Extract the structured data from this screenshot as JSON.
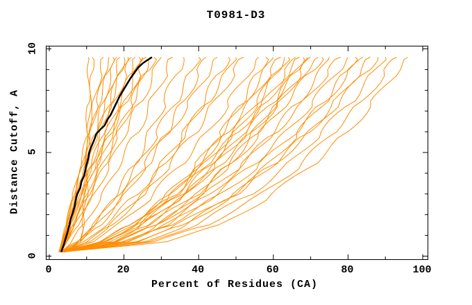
{
  "chart_data": {
    "type": "line",
    "title": "T0981-D3",
    "xlabel": "Percent of Residues (CA)",
    "ylabel": "Distance Cutoff, A",
    "xlim": [
      0,
      100
    ],
    "ylim": [
      0,
      10
    ],
    "grid": false,
    "legend": "none",
    "x_ticks": {
      "major": [
        0,
        20,
        40,
        60,
        80,
        100
      ],
      "labels": [
        "0",
        "20",
        "40",
        "60",
        "80",
        "100"
      ],
      "minor": [
        10,
        30,
        50,
        70,
        90
      ]
    },
    "y_ticks": {
      "major": [
        0,
        5,
        10
      ],
      "labels": [
        "0",
        "5",
        "10"
      ],
      "minor": [
        1,
        2,
        3,
        4,
        6,
        7,
        8,
        9
      ]
    },
    "colors": {
      "predictions": "#ff8c00",
      "highlighted_model": "#000000",
      "axis": "#000000",
      "background": "#ffffff"
    },
    "y_anchors": [
      0.2,
      0.7,
      1.5,
      3,
      4.5,
      6,
      7.5,
      9,
      9.6
    ],
    "series": [
      {
        "name": "p01",
        "x": [
          3.5,
          31,
          46,
          60,
          71,
          80,
          87,
          93.5,
          96
        ]
      },
      {
        "name": "p02",
        "x": [
          3,
          29,
          42,
          57,
          68,
          76,
          84,
          90.5,
          93
        ]
      },
      {
        "name": "p03",
        "x": [
          4,
          27,
          39,
          54,
          64.5,
          73,
          81,
          87.5,
          90
        ]
      },
      {
        "name": "p04",
        "x": [
          3,
          22.5,
          34.5,
          49.5,
          60.5,
          70,
          78,
          85,
          88
        ]
      },
      {
        "name": "p05",
        "x": [
          3.5,
          24,
          36,
          50,
          60.5,
          69.5,
          77,
          83.5,
          86
        ]
      },
      {
        "name": "p06",
        "x": [
          3,
          20.5,
          32,
          46,
          57,
          66,
          74,
          81,
          84
        ]
      },
      {
        "name": "p07",
        "x": [
          4,
          25.5,
          36.5,
          50,
          59,
          67,
          74,
          80,
          82
        ]
      },
      {
        "name": "p08",
        "x": [
          3,
          20.5,
          31.5,
          45,
          55,
          63.5,
          71,
          77.5,
          80
        ]
      },
      {
        "name": "p09",
        "x": [
          3.5,
          18.5,
          28.5,
          42,
          52,
          60.5,
          68.5,
          75,
          78
        ]
      },
      {
        "name": "p10",
        "x": [
          3,
          20.5,
          31,
          43,
          52.5,
          60,
          67,
          73,
          75
        ]
      },
      {
        "name": "p11",
        "x": [
          4,
          17.5,
          27,
          39.5,
          49,
          57,
          64,
          70.5,
          73
        ]
      },
      {
        "name": "p12",
        "x": [
          3,
          15,
          24,
          36.5,
          46,
          54.5,
          62,
          69,
          72
        ]
      },
      {
        "name": "p13",
        "x": [
          3.5,
          19,
          28,
          40,
          48.5,
          55.5,
          62,
          68,
          70
        ]
      },
      {
        "name": "p14",
        "x": [
          3,
          15,
          24,
          35.5,
          45,
          53,
          60,
          66.5,
          69
        ]
      },
      {
        "name": "p15",
        "x": [
          2.5,
          20,
          29.5,
          40.5,
          48.5,
          55,
          61,
          66,
          68
        ]
      },
      {
        "name": "p16",
        "x": [
          3,
          13.5,
          22,
          33,
          42.5,
          50.5,
          58,
          64.5,
          67
        ]
      },
      {
        "name": "p17",
        "x": [
          3.5,
          17,
          26,
          37,
          45,
          52,
          58.5,
          64,
          66
        ]
      },
      {
        "name": "p18",
        "x": [
          3,
          14.5,
          23,
          33.5,
          42,
          49.5,
          56,
          61.5,
          64
        ]
      },
      {
        "name": "p19",
        "x": [
          3,
          17,
          25.5,
          36,
          43.5,
          50,
          56,
          61,
          63
        ]
      },
      {
        "name": "p20",
        "x": [
          4,
          14,
          21.5,
          32,
          40.5,
          47.5,
          54,
          59.5,
          62
        ]
      },
      {
        "name": "p21",
        "x": [
          3,
          14.5,
          22,
          32.5,
          40,
          46.5,
          52.5,
          58,
          60
        ]
      },
      {
        "name": "p22",
        "x": [
          3.5,
          17,
          24.5,
          34,
          41,
          46.5,
          52,
          56.5,
          58
        ]
      },
      {
        "name": "p23",
        "x": [
          3,
          11.5,
          18.5,
          28,
          35.5,
          42.5,
          48.5,
          54,
          56
        ]
      },
      {
        "name": "p24",
        "x": [
          3,
          10.5,
          16.5,
          25.5,
          32.5,
          39,
          44.5,
          50,
          52
        ]
      },
      {
        "name": "p25",
        "x": [
          3.5,
          9.5,
          15,
          23.5,
          30.5,
          36.5,
          42.5,
          48,
          50
        ]
      },
      {
        "name": "p26",
        "x": [
          3,
          10.5,
          16.5,
          25,
          31,
          36.5,
          41.5,
          46,
          48
        ]
      },
      {
        "name": "p27",
        "x": [
          3,
          7.5,
          12.5,
          20,
          26.5,
          32,
          38,
          43,
          45
        ]
      },
      {
        "name": "p28",
        "x": [
          3.5,
          8.5,
          13.5,
          20.5,
          26,
          31.5,
          36,
          40.5,
          42
        ]
      },
      {
        "name": "p29",
        "x": [
          3,
          7.5,
          12,
          18.5,
          24,
          29,
          34,
          38.5,
          40
        ]
      },
      {
        "name": "p30",
        "x": [
          3,
          8,
          12,
          18,
          23,
          27,
          31,
          34.5,
          36
        ]
      },
      {
        "name": "p31",
        "x": [
          3,
          6,
          9,
          14.5,
          19,
          23.5,
          27.5,
          31.5,
          33
        ]
      },
      {
        "name": "p32",
        "x": [
          3,
          5,
          7.5,
          12,
          16.5,
          20.5,
          24.5,
          28.5,
          30
        ]
      },
      {
        "name": "p33",
        "x": [
          3,
          4.5,
          6.5,
          10.5,
          14.5,
          18.5,
          22.5,
          26.5,
          28
        ]
      },
      {
        "name": "p34",
        "x": [
          2.5,
          4.5,
          7,
          11.5,
          15,
          18.5,
          22.5,
          25.5,
          27
        ]
      },
      {
        "name": "p35",
        "x": [
          3,
          4,
          5.5,
          9,
          12.5,
          16.5,
          20.5,
          24.5,
          26
        ]
      },
      {
        "name": "p36",
        "x": [
          3,
          4.5,
          6.5,
          10,
          13.5,
          17,
          20.5,
          23.5,
          25
        ]
      },
      {
        "name": "p37",
        "x": [
          3.5,
          4,
          5.5,
          8.5,
          12,
          15.5,
          19,
          22.5,
          24
        ]
      },
      {
        "name": "p38",
        "x": [
          3,
          4.5,
          6.5,
          9.5,
          13,
          16,
          19,
          22,
          23
        ]
      },
      {
        "name": "p39",
        "x": [
          2.5,
          3.5,
          5,
          8.5,
          11.5,
          14.5,
          17.5,
          21,
          22
        ]
      },
      {
        "name": "p40",
        "x": [
          3,
          3.5,
          4.5,
          7,
          10,
          13,
          16.5,
          19.5,
          21
        ]
      },
      {
        "name": "p41",
        "x": [
          3,
          4,
          6,
          8.5,
          11.5,
          14,
          16.5,
          19,
          20
        ]
      },
      {
        "name": "p42",
        "x": [
          3,
          3.5,
          5,
          7.5,
          10,
          12.5,
          15.5,
          18,
          19
        ]
      },
      {
        "name": "p43",
        "x": [
          2.5,
          3.5,
          5,
          7.5,
          10,
          12.5,
          14.5,
          17,
          18
        ]
      },
      {
        "name": "p44",
        "x": [
          3,
          3.5,
          4.5,
          6.5,
          9,
          11,
          13.5,
          16,
          17
        ]
      },
      {
        "name": "p45",
        "x": [
          3,
          3.5,
          5,
          7,
          9,
          11,
          13,
          15,
          16
        ]
      },
      {
        "name": "p46",
        "x": [
          2.5,
          3.5,
          4.5,
          6.5,
          8.5,
          10.5,
          12,
          14,
          14.5
        ]
      },
      {
        "name": "p47",
        "x": [
          3,
          8.5,
          9,
          9.5,
          10,
          10,
          10.5,
          10.5,
          10.5
        ]
      },
      {
        "name": "p48",
        "x": [
          3.5,
          8,
          9,
          10,
          10.5,
          10.5,
          11,
          11.5,
          11.5
        ]
      }
    ],
    "highlighted_series": {
      "name": "highlighted-model",
      "points": [
        [
          3.2,
          0.2
        ],
        [
          3.8,
          0.5
        ],
        [
          4.3,
          0.8
        ],
        [
          4.8,
          1.1
        ],
        [
          5.4,
          1.5
        ],
        [
          5.7,
          1.8
        ],
        [
          6.3,
          2.1
        ],
        [
          6.8,
          2.4
        ],
        [
          7.2,
          2.8
        ],
        [
          7.5,
          3.0
        ],
        [
          8.3,
          3.3
        ],
        [
          8.6,
          3.6
        ],
        [
          9.4,
          3.9
        ],
        [
          9.8,
          4.3
        ],
        [
          10.4,
          4.7
        ],
        [
          10.7,
          5.0
        ],
        [
          11.3,
          5.3
        ],
        [
          12.0,
          5.6
        ],
        [
          12.6,
          5.9
        ],
        [
          13.6,
          6.1
        ],
        [
          14.8,
          6.3
        ],
        [
          15.6,
          6.6
        ],
        [
          16.4,
          6.8
        ],
        [
          17.2,
          7.1
        ],
        [
          18.0,
          7.4
        ],
        [
          18.8,
          7.7
        ],
        [
          19.8,
          8.0
        ],
        [
          20.8,
          8.3
        ],
        [
          21.8,
          8.6
        ],
        [
          22.8,
          8.85
        ],
        [
          23.8,
          9.1
        ],
        [
          25.0,
          9.3
        ],
        [
          26.2,
          9.45
        ],
        [
          27.5,
          9.6
        ]
      ]
    }
  }
}
